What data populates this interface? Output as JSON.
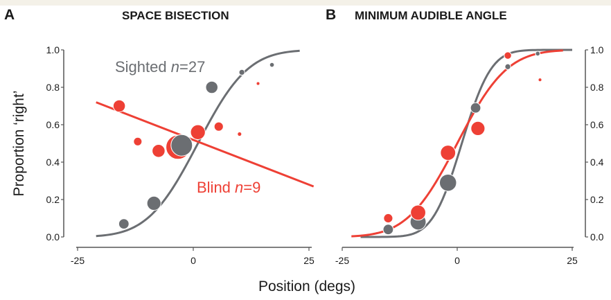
{
  "colors": {
    "sighted": "#6b6e72",
    "blind": "#ee4035",
    "axis": "#555555"
  },
  "shared": {
    "xlabel": "Position (degs)",
    "ylabel": "Proportion ‘right’"
  },
  "chart_data": [
    {
      "panel": "A",
      "title": "SPACE BISECTION",
      "type": "scatter",
      "xlim": [
        -25,
        25
      ],
      "ylim": [
        0,
        1
      ],
      "xticks": [
        "-25",
        "0",
        "25"
      ],
      "yticks": [
        "0.0",
        "0.2",
        "0.4",
        "0.6",
        "0.8",
        "1.0"
      ],
      "y_axis_side": "left",
      "annotations": [
        {
          "series": "sighted",
          "text": "Sighted ",
          "italic": "n",
          "rest": "=27"
        },
        {
          "series": "blind",
          "text": "Blind ",
          "italic": "n",
          "rest": "=9"
        }
      ],
      "series": [
        {
          "key": "sighted",
          "points": [
            {
              "x": -15,
              "y": 0.07,
              "size": 2
            },
            {
              "x": -8.5,
              "y": 0.18,
              "size": 3
            },
            {
              "x": -2.5,
              "y": 0.49,
              "size": 5
            },
            {
              "x": 4,
              "y": 0.8,
              "size": 2.5
            },
            {
              "x": 10.5,
              "y": 0.88,
              "size": 0.8
            },
            {
              "x": 17,
              "y": 0.92,
              "size": 0.5
            }
          ],
          "fit": {
            "kind": "sigmoid",
            "mu": 1.0,
            "sigma": 8.5,
            "x_range": [
              -21,
              23
            ]
          }
        },
        {
          "key": "blind",
          "points": [
            {
              "x": -16,
              "y": 0.7,
              "size": 2.5
            },
            {
              "x": -12,
              "y": 0.51,
              "size": 1.5
            },
            {
              "x": -7.5,
              "y": 0.46,
              "size": 2.7
            },
            {
              "x": -3.3,
              "y": 0.48,
              "size": 5.7
            },
            {
              "x": 1,
              "y": 0.56,
              "size": 3.2
            },
            {
              "x": 5.5,
              "y": 0.59,
              "size": 1.7
            },
            {
              "x": 10,
              "y": 0.55,
              "size": 0.4
            },
            {
              "x": 14,
              "y": 0.82,
              "size": 0.2
            }
          ],
          "fit": {
            "kind": "linear",
            "x_range": [
              -21,
              26
            ],
            "y_range": [
              0.72,
              0.27
            ]
          }
        }
      ]
    },
    {
      "panel": "B",
      "title": "MINIMUM AUDIBLE ANGLE",
      "type": "scatter",
      "xlim": [
        -25,
        25
      ],
      "ylim": [
        0,
        1
      ],
      "xticks": [
        "-25",
        "0",
        "25"
      ],
      "yticks": [
        "0.0",
        "0.2",
        "0.4",
        "0.6",
        "0.8",
        "1.0"
      ],
      "y_axis_side": "right",
      "series": [
        {
          "key": "sighted",
          "points": [
            {
              "x": -15,
              "y": 0.04,
              "size": 2
            },
            {
              "x": -8.5,
              "y": 0.08,
              "size": 3.5
            },
            {
              "x": -2,
              "y": 0.29,
              "size": 3.8
            },
            {
              "x": 4,
              "y": 0.69,
              "size": 2
            },
            {
              "x": 11,
              "y": 0.91,
              "size": 0.8
            },
            {
              "x": 17.5,
              "y": 0.98,
              "size": 0.5
            }
          ],
          "fit": {
            "kind": "sigmoid",
            "mu": 1.0,
            "sigma": 5.0,
            "x_range": [
              -21,
              25
            ]
          }
        },
        {
          "key": "blind",
          "points": [
            {
              "x": -15,
              "y": 0.1,
              "size": 1.7
            },
            {
              "x": -8.5,
              "y": 0.13,
              "size": 3.3
            },
            {
              "x": -2,
              "y": 0.45,
              "size": 3.3
            },
            {
              "x": 4.5,
              "y": 0.58,
              "size": 3
            },
            {
              "x": 11,
              "y": 0.97,
              "size": 1.2
            },
            {
              "x": 18,
              "y": 0.84,
              "size": 0.2
            }
          ],
          "fit": {
            "kind": "sigmoid",
            "mu": 0,
            "sigma": 8.5,
            "x_range": [
              -23,
              23
            ]
          }
        }
      ]
    }
  ]
}
